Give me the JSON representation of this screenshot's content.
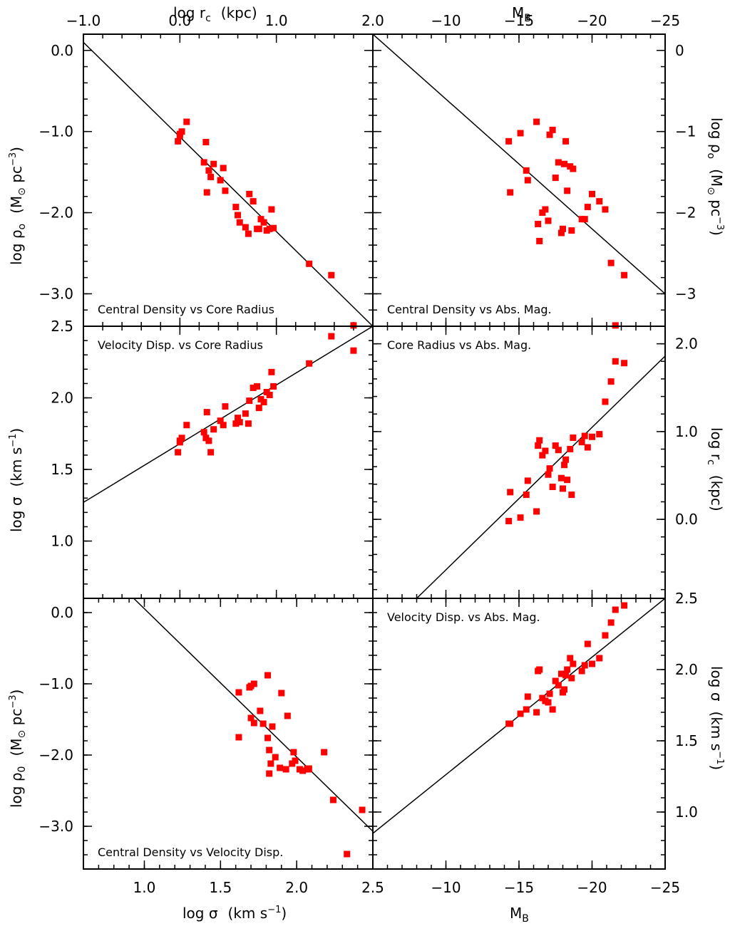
{
  "chart_data": [
    {
      "type": "scatter",
      "panel": "top-left",
      "title": "Central Density vs Core Radius",
      "xlabel": "log r_c  (kpc)",
      "ylabel": "log ρ_o  (M_⊙ pc^-3)",
      "xlim": [
        -1.0,
        2.0
      ],
      "ylim": [
        -3.4,
        0.2
      ],
      "xticks": [
        -1.0,
        0.0,
        1.0,
        2.0
      ],
      "xticklabels": [
        "−1.0",
        "0.0",
        "1.0",
        "2.0"
      ],
      "yticks": [
        0.0,
        -1.0,
        -2.0,
        -3.0
      ],
      "yticklabels": [
        "0.0",
        "−1.0",
        "−2.0",
        "−3.0"
      ],
      "fit_line": [
        [
          -1.0,
          0.1
        ],
        [
          2.0,
          -3.4
        ]
      ],
      "x": [
        -0.02,
        0.0,
        0.02,
        0.0,
        0.07,
        0.27,
        0.25,
        0.3,
        0.32,
        0.35,
        0.28,
        0.45,
        0.42,
        0.47,
        0.58,
        0.62,
        0.6,
        0.72,
        0.76,
        0.8,
        0.71,
        0.68,
        0.82,
        0.84,
        0.87,
        0.9,
        0.93,
        0.95,
        0.97,
        1.34,
        1.57,
        1.8
      ],
      "y": [
        -1.12,
        -1.03,
        -1.0,
        -1.05,
        -0.88,
        -1.13,
        -1.38,
        -1.48,
        -1.56,
        -1.4,
        -1.75,
        -1.45,
        -1.6,
        -1.73,
        -1.93,
        -2.12,
        -2.03,
        -1.77,
        -1.86,
        -2.2,
        -2.26,
        -2.18,
        -2.2,
        -2.08,
        -2.12,
        -2.22,
        -2.2,
        -1.96,
        -2.19,
        -2.63,
        -2.77,
        -3.39
      ]
    },
    {
      "type": "scatter",
      "panel": "top-right",
      "title": "Central Density vs Abs. Mag.",
      "xlabel": "M_B",
      "ylabel": "log ρ_o  (M_⊙ pc^-3)",
      "xlim": [
        -5,
        -25
      ],
      "ylim": [
        -3.4,
        0.2
      ],
      "xticks": [
        -10,
        -15,
        -20,
        -25
      ],
      "xticklabels": [
        "−10",
        "−15",
        "−20",
        "−25"
      ],
      "yticks": [
        0,
        -1,
        -2,
        -3
      ],
      "yticklabels": [
        "0",
        "−1",
        "−2",
        "−3"
      ],
      "fit_line": [
        [
          -5,
          0.2
        ],
        [
          -25,
          -3.0
        ]
      ],
      "x": [
        -14.3,
        -14.4,
        -15.1,
        -15.5,
        -15.6,
        -16.2,
        -16.3,
        -16.4,
        -16.6,
        -16.8,
        -17.0,
        -17.1,
        -17.3,
        -17.7,
        -17.5,
        -18.1,
        -18.2,
        -18.3,
        -18.5,
        -18.7,
        -18.6,
        -18.0,
        -17.9,
        -19.3,
        -19.5,
        -20.0,
        -19.7,
        -20.5,
        -20.9,
        -21.3,
        -21.6,
        -22.2
      ],
      "y": [
        -1.12,
        -1.75,
        -1.02,
        -1.48,
        -1.6,
        -0.88,
        -2.14,
        -2.35,
        -2.0,
        -1.96,
        -2.1,
        -1.04,
        -0.98,
        -1.38,
        -1.57,
        -1.4,
        -1.12,
        -1.73,
        -1.43,
        -1.46,
        -2.22,
        -2.2,
        -2.25,
        -2.08,
        -2.08,
        -1.77,
        -1.93,
        -1.86,
        -1.96,
        -2.62,
        -3.39,
        -2.77
      ]
    },
    {
      "type": "scatter",
      "panel": "middle-left",
      "title": "Velocity Disp. vs Core Radius",
      "xlabel": "log r_c  (kpc)",
      "ylabel": "log σ  (km s^-1)",
      "xlim": [
        -1.0,
        2.0
      ],
      "ylim": [
        0.6,
        2.5
      ],
      "xticks": [
        -1.0,
        0.0,
        1.0,
        2.0
      ],
      "yticks": [
        1.0,
        1.5,
        2.0,
        2.5
      ],
      "yticklabels": [
        "1.0",
        "1.5",
        "2.0",
        "2.5"
      ],
      "fit_line": [
        [
          -1.0,
          1.27
        ],
        [
          2.0,
          2.5
        ]
      ],
      "x": [
        -0.02,
        0.0,
        0.02,
        0.0,
        0.07,
        0.27,
        0.25,
        0.3,
        0.32,
        0.35,
        0.28,
        0.45,
        0.42,
        0.47,
        0.58,
        0.62,
        0.6,
        0.72,
        0.76,
        0.8,
        0.71,
        0.68,
        0.82,
        0.84,
        0.87,
        0.9,
        0.93,
        0.95,
        0.97,
        1.34,
        1.57,
        1.8
      ],
      "y": [
        1.62,
        1.7,
        1.72,
        1.69,
        1.81,
        1.72,
        1.76,
        1.7,
        1.62,
        1.78,
        1.9,
        1.81,
        1.84,
        1.94,
        1.82,
        1.83,
        1.86,
        1.98,
        2.07,
        2.08,
        1.82,
        1.89,
        1.93,
        1.99,
        1.97,
        2.04,
        2.02,
        2.18,
        2.08,
        2.24,
        2.43,
        2.33
      ]
    },
    {
      "type": "scatter",
      "panel": "middle-right",
      "title": "Core Radius vs Abs. Mag.",
      "xlabel": "M_B",
      "ylabel": "log r_c  (kpc)",
      "xlim": [
        -5,
        -25
      ],
      "ylim": [
        -0.9,
        2.2
      ],
      "xticks": [
        -10,
        -15,
        -20,
        -25
      ],
      "yticks": [
        0.0,
        1.0,
        2.0
      ],
      "yticklabels": [
        "0.0",
        "1.0",
        "2.0"
      ],
      "fit_line": [
        [
          -8,
          -0.9
        ],
        [
          -25,
          1.86
        ]
      ],
      "x": [
        -14.3,
        -14.4,
        -15.1,
        -15.5,
        -15.6,
        -16.2,
        -16.3,
        -16.4,
        -16.6,
        -16.8,
        -17.0,
        -17.1,
        -17.3,
        -17.7,
        -17.5,
        -18.1,
        -18.2,
        -18.3,
        -18.5,
        -18.7,
        -18.6,
        -18.0,
        -17.9,
        -19.3,
        -19.5,
        -20.0,
        -19.7,
        -20.5,
        -20.9,
        -21.3,
        -21.6,
        -22.2
      ],
      "y": [
        -0.02,
        0.31,
        0.02,
        0.28,
        0.44,
        0.09,
        0.84,
        0.9,
        0.73,
        0.78,
        0.51,
        0.58,
        0.37,
        0.79,
        0.84,
        0.62,
        0.68,
        0.45,
        0.8,
        0.93,
        0.28,
        0.35,
        0.47,
        0.88,
        0.95,
        0.94,
        0.82,
        0.97,
        1.34,
        1.57,
        1.8,
        1.78
      ]
    },
    {
      "type": "scatter",
      "panel": "bottom-left",
      "title": "Central Density vs Velocity Disp.",
      "xlabel": "log σ  (km s^-1)",
      "ylabel": "log ρ_0  (M_⊙ pc^-3)",
      "xlim": [
        0.6,
        2.5
      ],
      "ylim": [
        -3.6,
        0.2
      ],
      "xticks": [
        1.0,
        1.5,
        2.0,
        2.5
      ],
      "xticklabels": [
        "1.0",
        "1.5",
        "2.0",
        "2.5"
      ],
      "yticks": [
        0.0,
        -1.0,
        -2.0,
        -3.0
      ],
      "yticklabels": [
        "0.0",
        "−1.0",
        "−2.0",
        "−3.0"
      ],
      "fit_line": [
        [
          0.93,
          0.2
        ],
        [
          2.5,
          -3.07
        ]
      ],
      "x": [
        1.62,
        1.7,
        1.72,
        1.69,
        1.81,
        1.72,
        1.76,
        1.7,
        1.62,
        1.78,
        1.9,
        1.81,
        1.84,
        1.94,
        1.82,
        1.83,
        1.86,
        1.98,
        2.07,
        2.08,
        1.82,
        1.89,
        1.93,
        1.99,
        1.97,
        2.04,
        2.02,
        2.18,
        2.08,
        2.24,
        2.43,
        2.33
      ],
      "y": [
        -1.12,
        -1.03,
        -1.0,
        -1.05,
        -0.88,
        -1.55,
        -1.38,
        -1.48,
        -1.75,
        -1.56,
        -1.13,
        -1.76,
        -1.6,
        -1.45,
        -1.93,
        -2.12,
        -2.03,
        -1.96,
        -2.19,
        -2.2,
        -2.26,
        -2.18,
        -2.2,
        -2.08,
        -2.12,
        -2.22,
        -2.2,
        -1.96,
        -2.19,
        -2.63,
        -2.77,
        -3.39
      ]
    },
    {
      "type": "scatter",
      "panel": "bottom-right",
      "title": "Velocity Disp. vs Abs. Mag.",
      "xlabel": "M_B",
      "ylabel": "log σ  (km s^-1)",
      "xlim": [
        -5,
        -25
      ],
      "ylim": [
        0.6,
        2.5
      ],
      "xticks": [
        -10,
        -15,
        -20,
        -25
      ],
      "xticklabels": [
        "−10",
        "−15",
        "−20",
        "−25"
      ],
      "yticks": [
        1.0,
        1.5,
        2.0,
        2.5
      ],
      "yticklabels": [
        "1.0",
        "1.5",
        "2.0",
        "2.5"
      ],
      "fit_line": [
        [
          -5,
          0.85
        ],
        [
          -25,
          2.5
        ]
      ],
      "x": [
        -14.3,
        -14.4,
        -15.1,
        -15.5,
        -15.6,
        -16.2,
        -16.3,
        -16.4,
        -16.6,
        -16.8,
        -17.0,
        -17.1,
        -17.3,
        -17.7,
        -17.5,
        -18.1,
        -18.2,
        -18.3,
        -18.5,
        -18.7,
        -18.6,
        -18.0,
        -17.9,
        -19.3,
        -19.5,
        -20.0,
        -19.7,
        -20.5,
        -20.9,
        -21.3,
        -21.6,
        -22.2
      ],
      "y": [
        1.62,
        1.62,
        1.69,
        1.72,
        1.81,
        1.7,
        1.99,
        2.0,
        1.8,
        1.78,
        1.77,
        1.83,
        1.72,
        1.89,
        1.92,
        1.86,
        1.96,
        2.0,
        2.08,
        2.04,
        1.94,
        1.84,
        1.97,
        1.99,
        2.03,
        2.04,
        2.18,
        2.08,
        2.24,
        2.33,
        2.42,
        2.45
      ]
    }
  ],
  "axes": {
    "top_left_label": "log r",
    "top_left_sub": "c",
    "top_left_unit": "(kpc)",
    "top_right_label": "M",
    "top_right_sub": "B",
    "bottom_left_label": "log σ",
    "bottom_left_unit": "(km s",
    "bottom_left_unit_sup": "−1",
    "bottom_left_unit_end": ")",
    "bottom_right_label": "M",
    "bottom_right_sub": "B",
    "left_top_label": "log ρ",
    "left_top_sub": "o",
    "left_top_unit": "(M",
    "left_top_unit_sub": "⊙",
    "left_top_unit_mid": " pc",
    "left_top_unit_sup": "−3",
    "left_top_unit_end": ")",
    "left_mid_label": "log σ",
    "left_mid_unit": "(km s",
    "left_mid_unit_sup": "−1",
    "left_mid_unit_end": ")",
    "left_bot_label": "log ρ",
    "left_bot_sub": "0",
    "left_bot_unit": "(M",
    "left_bot_unit_sub": "⊙",
    "left_bot_unit_mid": " pc",
    "left_bot_unit_sup": "−3",
    "left_bot_unit_end": ")",
    "right_top_label": "log ρ",
    "right_top_sub": "o",
    "right_top_unit": "(M",
    "right_top_unit_sub": "⊙",
    "right_top_unit_mid": " pc",
    "right_top_unit_sup": "−3",
    "right_top_unit_end": ")",
    "right_mid_label": "log r",
    "right_mid_sub": "c",
    "right_mid_unit": "(kpc)",
    "right_bot_label": "log σ",
    "right_bot_unit": "(km s",
    "right_bot_unit_sup": "−1",
    "right_bot_unit_end": ")"
  },
  "marker_color": "#ff0000"
}
